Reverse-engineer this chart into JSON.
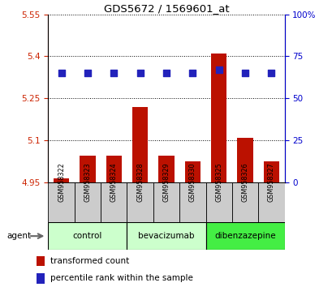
{
  "title": "GDS5672 / 1569601_at",
  "samples": [
    "GSM958322",
    "GSM958323",
    "GSM958324",
    "GSM958328",
    "GSM958329",
    "GSM958330",
    "GSM958325",
    "GSM958326",
    "GSM958327"
  ],
  "red_values": [
    4.965,
    5.045,
    5.045,
    5.22,
    5.045,
    5.025,
    5.41,
    5.11,
    5.025
  ],
  "blue_values": [
    65,
    65,
    65,
    65,
    65,
    65,
    67,
    65,
    65
  ],
  "ylim_left": [
    4.95,
    5.55
  ],
  "ylim_right": [
    0,
    100
  ],
  "yticks_left": [
    4.95,
    5.1,
    5.25,
    5.4,
    5.55
  ],
  "yticks_right": [
    0,
    25,
    50,
    75,
    100
  ],
  "groups": [
    {
      "label": "control",
      "indices": [
        0,
        1,
        2
      ],
      "color": "#ccffcc"
    },
    {
      "label": "bevacizumab",
      "indices": [
        3,
        4,
        5
      ],
      "color": "#ccffcc"
    },
    {
      "label": "dibenzazepine",
      "indices": [
        6,
        7,
        8
      ],
      "color": "#44ee44"
    }
  ],
  "bar_color": "#bb1100",
  "dot_color": "#2222bb",
  "baseline": 4.95,
  "bg_color": "#ffffff",
  "tick_label_color_left": "#cc2200",
  "tick_label_color_right": "#0000cc",
  "legend_red_label": "transformed count",
  "legend_blue_label": "percentile rank within the sample",
  "agent_label": "agent",
  "sample_area_color": "#cccccc",
  "dot_size": 28
}
